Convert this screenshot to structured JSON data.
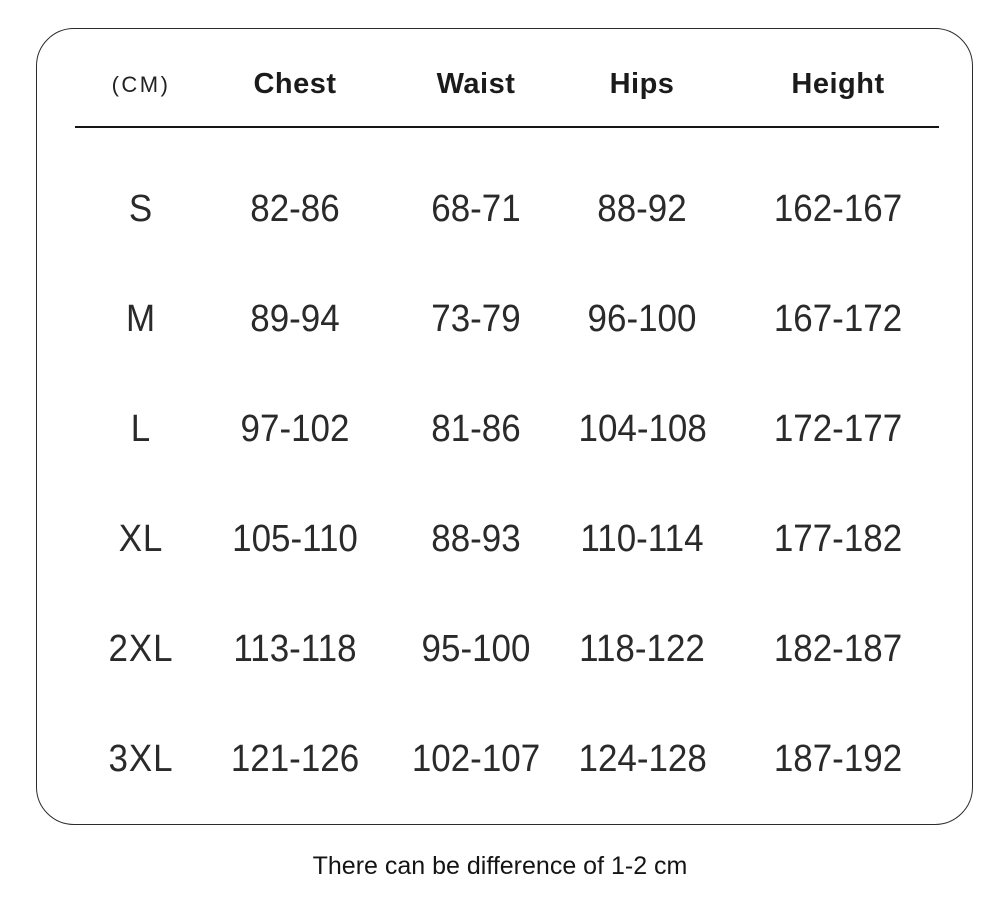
{
  "chart_data": {
    "type": "table",
    "unit_label": "(CM)",
    "columns": [
      "Chest",
      "Waist",
      "Hips",
      "Height"
    ],
    "rows": [
      {
        "size": "S",
        "chest": "82-86",
        "waist": "68-71",
        "hips": "88-92",
        "height": "162-167"
      },
      {
        "size": "M",
        "chest": "89-94",
        "waist": "73-79",
        "hips": "96-100",
        "height": "167-172"
      },
      {
        "size": "L",
        "chest": "97-102",
        "waist": "81-86",
        "hips": "104-108",
        "height": "172-177"
      },
      {
        "size": "XL",
        "chest": "105-110",
        "waist": "88-93",
        "hips": "110-114",
        "height": "177-182"
      },
      {
        "size": "2XL",
        "chest": "113-118",
        "waist": "95-100",
        "hips": "118-122",
        "height": "182-187"
      },
      {
        "size": "3XL",
        "chest": "121-126",
        "waist": "102-107",
        "hips": "124-128",
        "height": "187-192"
      }
    ],
    "footnote": "There can be difference of 1-2 cm",
    "colors": {
      "text": "#1c1c1c",
      "border": "#2b2b2b",
      "background": "#ffffff"
    }
  }
}
